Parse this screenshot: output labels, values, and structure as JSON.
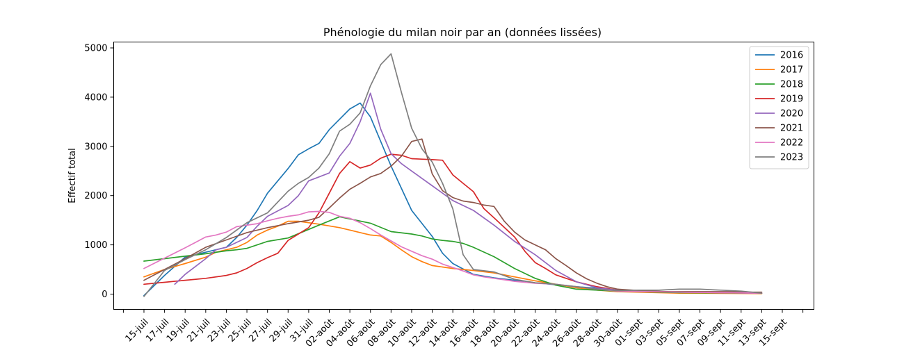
{
  "chart_data": {
    "type": "line",
    "title": "Phénologie du milan noir par an (données lissées)",
    "xlabel": "",
    "ylabel": "Effectif total",
    "ylim": [
      -300,
      5150
    ],
    "yticks": [
      0,
      1000,
      2000,
      3000,
      4000,
      5000
    ],
    "grid": false,
    "legend_position": "top-right",
    "x_start": "15-juil",
    "x_end": "15-sept",
    "x_tick_labels": [
      "15-juil",
      "17-juil",
      "19-juil",
      "21-juil",
      "23-juil",
      "25-juil",
      "27-juil",
      "29-juil",
      "31-juil",
      "02-août",
      "04-août",
      "06-août",
      "08-août",
      "10-août",
      "12-août",
      "14-août",
      "16-août",
      "18-août",
      "20-août",
      "22-août",
      "24-août",
      "26-août",
      "28-août",
      "30-août",
      "01-sept",
      "03-sept",
      "05-sept",
      "07-sept",
      "09-sept",
      "11-sept",
      "13-sept",
      "15-sept"
    ],
    "x_dates": [
      "15-juil",
      "16-juil",
      "17-juil",
      "18-juil",
      "19-juil",
      "20-juil",
      "21-juil",
      "22-juil",
      "23-juil",
      "24-juil",
      "25-juil",
      "26-juil",
      "27-juil",
      "28-juil",
      "29-juil",
      "30-juil",
      "31-juil",
      "01-août",
      "02-août",
      "03-août",
      "04-août",
      "05-août",
      "06-août",
      "07-août",
      "08-août",
      "09-août",
      "10-août",
      "11-août",
      "12-août",
      "13-août",
      "14-août",
      "15-août",
      "16-août",
      "17-août",
      "18-août",
      "19-août",
      "20-août",
      "21-août",
      "22-août",
      "23-août",
      "24-août",
      "25-août",
      "26-août",
      "27-août",
      "28-août",
      "29-août",
      "30-août",
      "31-août",
      "01-sept",
      "02-sept",
      "03-sept",
      "04-sept",
      "05-sept",
      "06-sept",
      "07-sept",
      "08-sept",
      "09-sept",
      "10-sept",
      "11-sept",
      "12-sept",
      "13-sept",
      "14-sept",
      "15-sept"
    ],
    "series": [
      {
        "name": "2016",
        "color": "#1f77b4",
        "x": [
          "15-juil",
          "17-juil",
          "19-juil",
          "21-juil",
          "23-juil",
          "24-juil",
          "25-juil",
          "26-juil",
          "27-juil",
          "29-juil",
          "30-juil",
          "31-juil",
          "01-août",
          "02-août",
          "04-août",
          "05-août",
          "06-août",
          "07-août",
          "08-août",
          "10-août",
          "12-août",
          "13-août",
          "14-août",
          "16-août",
          "18-août",
          "20-août",
          "22-août",
          "24-août",
          "26-août",
          "28-août",
          "30-août",
          "05-sept",
          "13-sept"
        ],
        "values": [
          -30,
          380,
          750,
          850,
          950,
          1150,
          1400,
          1700,
          2050,
          2550,
          2830,
          2950,
          3060,
          3340,
          3760,
          3880,
          3600,
          3100,
          2600,
          1700,
          1170,
          830,
          620,
          400,
          330,
          280,
          230,
          190,
          150,
          120,
          80,
          40,
          20
        ]
      },
      {
        "name": "2017",
        "color": "#ff7f0e",
        "x": [
          "15-juil",
          "17-juil",
          "19-juil",
          "21-juil",
          "22-juil",
          "23-juil",
          "24-juil",
          "25-juil",
          "26-juil",
          "27-juil",
          "28-juil",
          "29-juil",
          "30-juil",
          "01-août",
          "03-août",
          "04-août",
          "05-août",
          "06-août",
          "07-août",
          "08-août",
          "09-août",
          "10-août",
          "11-août",
          "12-août",
          "13-août",
          "14-août",
          "16-août",
          "18-août",
          "20-août",
          "22-août",
          "24-août",
          "26-août",
          "28-août",
          "30-août",
          "05-sept",
          "13-sept"
        ],
        "values": [
          350,
          500,
          620,
          750,
          850,
          900,
          950,
          1050,
          1200,
          1300,
          1380,
          1480,
          1480,
          1420,
          1350,
          1300,
          1250,
          1200,
          1180,
          1050,
          900,
          760,
          660,
          580,
          550,
          520,
          480,
          430,
          350,
          270,
          200,
          130,
          80,
          50,
          20,
          10
        ]
      },
      {
        "name": "2018",
        "color": "#2ca02c",
        "x": [
          "15-juil",
          "17-juil",
          "19-juil",
          "21-juil",
          "23-juil",
          "24-juil",
          "25-juil",
          "27-juil",
          "29-juil",
          "01-août",
          "03-août",
          "06-août",
          "08-août",
          "10-août",
          "11-août",
          "12-août",
          "13-août",
          "14-août",
          "15-août",
          "16-août",
          "18-août",
          "20-août",
          "22-août",
          "24-août",
          "26-août",
          "28-août",
          "30-août",
          "05-sept",
          "13-sept"
        ],
        "values": [
          670,
          720,
          770,
          820,
          880,
          900,
          930,
          1070,
          1140,
          1400,
          1570,
          1440,
          1270,
          1220,
          1180,
          1120,
          1090,
          1070,
          1030,
          950,
          760,
          520,
          320,
          180,
          100,
          80,
          60,
          30,
          20
        ]
      },
      {
        "name": "2019",
        "color": "#d62728",
        "x": [
          "15-juil",
          "17-juil",
          "19-juil",
          "21-juil",
          "23-juil",
          "24-juil",
          "25-juil",
          "26-juil",
          "27-juil",
          "28-juil",
          "29-juil",
          "30-juil",
          "31-juil",
          "01-août",
          "02-août",
          "03-août",
          "04-août",
          "05-août",
          "06-août",
          "07-août",
          "08-août",
          "09-août",
          "10-août",
          "11-août",
          "12-août",
          "13-août",
          "14-août",
          "15-août",
          "16-août",
          "17-août",
          "18-août",
          "20-août",
          "21-août",
          "22-août",
          "23-août",
          "24-août",
          "26-août",
          "28-août",
          "30-août",
          "05-sept",
          "13-sept"
        ],
        "values": [
          200,
          240,
          280,
          320,
          380,
          430,
          520,
          640,
          740,
          830,
          1090,
          1220,
          1350,
          1650,
          2050,
          2450,
          2690,
          2560,
          2620,
          2760,
          2840,
          2820,
          2750,
          2740,
          2730,
          2720,
          2420,
          2250,
          2080,
          1740,
          1550,
          1160,
          870,
          640,
          520,
          390,
          250,
          150,
          80,
          40,
          20
        ]
      },
      {
        "name": "2020",
        "color": "#9467bd",
        "x": [
          "18-juil",
          "19-juil",
          "21-juil",
          "22-juil",
          "23-juil",
          "25-juil",
          "26-juil",
          "27-juil",
          "29-juil",
          "30-juil",
          "31-juil",
          "01-août",
          "02-août",
          "03-août",
          "04-août",
          "05-août",
          "06-août",
          "07-août",
          "08-août",
          "09-août",
          "10-août",
          "11-août",
          "12-août",
          "13-août",
          "14-août",
          "16-août",
          "18-août",
          "20-août",
          "22-août",
          "24-août",
          "26-août",
          "28-août",
          "30-août",
          "05-sept",
          "13-sept"
        ],
        "values": [
          200,
          400,
          720,
          900,
          950,
          1150,
          1380,
          1580,
          1800,
          2000,
          2300,
          2380,
          2460,
          2800,
          3060,
          3500,
          4080,
          3350,
          2850,
          2650,
          2500,
          2350,
          2200,
          2050,
          1900,
          1700,
          1400,
          1070,
          800,
          480,
          250,
          130,
          80,
          40,
          20
        ]
      },
      {
        "name": "2021",
        "color": "#8c564b",
        "x": [
          "15-juil",
          "17-juil",
          "19-juil",
          "21-juil",
          "23-juil",
          "25-juil",
          "27-juil",
          "29-juil",
          "31-juil",
          "01-août",
          "02-août",
          "03-août",
          "04-août",
          "05-août",
          "06-août",
          "07-août",
          "08-août",
          "09-août",
          "10-août",
          "11-août",
          "12-août",
          "13-août",
          "14-août",
          "15-août",
          "16-août",
          "17-août",
          "18-août",
          "19-août",
          "20-août",
          "21-août",
          "22-août",
          "23-août",
          "24-août",
          "25-août",
          "26-août",
          "27-août",
          "28-août",
          "29-août",
          "30-août",
          "02-sept",
          "04-sept",
          "06-sept",
          "08-sept",
          "10-sept",
          "12-sept",
          "13-sept"
        ],
        "values": [
          280,
          500,
          720,
          950,
          1100,
          1250,
          1350,
          1430,
          1500,
          1560,
          1750,
          1950,
          2130,
          2250,
          2380,
          2450,
          2600,
          2800,
          3100,
          3150,
          2440,
          2100,
          1960,
          1890,
          1860,
          1810,
          1780,
          1480,
          1260,
          1100,
          1000,
          900,
          720,
          580,
          430,
          310,
          220,
          150,
          100,
          60,
          50,
          50,
          50,
          50,
          40,
          40
        ]
      },
      {
        "name": "2022",
        "color": "#e377c2",
        "x": [
          "15-juil",
          "17-juil",
          "19-juil",
          "20-juil",
          "21-juil",
          "22-juil",
          "23-juil",
          "24-juil",
          "26-juil",
          "27-juil",
          "28-juil",
          "29-juil",
          "30-juil",
          "31-juil",
          "01-août",
          "02-août",
          "03-août",
          "04-août",
          "05-août",
          "06-août",
          "07-août",
          "08-août",
          "09-août",
          "10-août",
          "11-août",
          "12-août",
          "13-août",
          "14-août",
          "15-août",
          "16-août",
          "17-août",
          "18-août",
          "19-août",
          "20-août",
          "21-août",
          "22-août",
          "24-août",
          "26-août",
          "28-août",
          "30-août",
          "05-sept",
          "13-sept"
        ],
        "values": [
          520,
          730,
          940,
          1050,
          1160,
          1200,
          1260,
          1370,
          1430,
          1490,
          1540,
          1580,
          1610,
          1670,
          1680,
          1660,
          1580,
          1540,
          1450,
          1330,
          1200,
          1080,
          960,
          870,
          780,
          710,
          610,
          540,
          470,
          390,
          350,
          320,
          290,
          260,
          240,
          220,
          200,
          150,
          100,
          60,
          40,
          20
        ]
      },
      {
        "name": "2023",
        "color": "#7f7f7f",
        "x": [
          "15-juil",
          "17-juil",
          "19-juil",
          "21-juil",
          "23-juil",
          "25-juil",
          "27-juil",
          "29-juil",
          "30-juil",
          "31-juil",
          "01-août",
          "02-août",
          "03-août",
          "04-août",
          "05-août",
          "06-août",
          "07-août",
          "08-août",
          "09-août",
          "10-août",
          "11-août",
          "12-août",
          "13-août",
          "14-août",
          "15-août",
          "16-août",
          "18-août",
          "20-août",
          "22-août",
          "24-août",
          "26-août",
          "28-août",
          "30-août",
          "01-sept",
          "03-sept",
          "05-sept",
          "07-sept",
          "09-sept",
          "11-sept",
          "13-sept"
        ],
        "values": [
          -50,
          480,
          700,
          900,
          1150,
          1450,
          1650,
          2090,
          2250,
          2370,
          2560,
          2850,
          3310,
          3450,
          3680,
          4230,
          4660,
          4880,
          4100,
          3370,
          2950,
          2680,
          2250,
          1730,
          800,
          500,
          450,
          300,
          230,
          200,
          150,
          100,
          70,
          80,
          80,
          100,
          100,
          80,
          60,
          20
        ]
      }
    ]
  }
}
